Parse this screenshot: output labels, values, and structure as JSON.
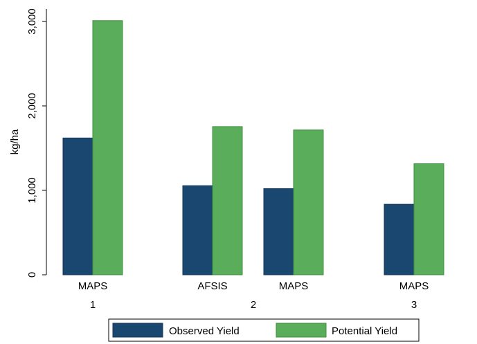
{
  "chart_data": {
    "type": "bar",
    "ylabel": "kg/ha",
    "ylim": [
      0,
      3000
    ],
    "yticks": [
      0,
      1000,
      2000,
      3000
    ],
    "ytick_labels": [
      "0",
      "1,000",
      "2,000",
      "3,000"
    ],
    "groups": [
      {
        "label": "1",
        "bars": [
          {
            "label": "MAPS",
            "observed": 1620,
            "potential": 3010
          }
        ]
      },
      {
        "label": "2",
        "bars": [
          {
            "label": "AFSIS",
            "observed": 1055,
            "potential": 1755
          },
          {
            "label": "MAPS",
            "observed": 1020,
            "potential": 1715
          }
        ]
      },
      {
        "label": "3",
        "bars": [
          {
            "label": "MAPS",
            "observed": 835,
            "potential": 1315
          }
        ]
      }
    ],
    "series": [
      {
        "name": "Observed Yield",
        "key": "observed",
        "color": "#1a476f"
      },
      {
        "name": "Potential Yield",
        "key": "potential",
        "color": "#5aad5a"
      }
    ],
    "grid": false,
    "legend_position": "bottom"
  }
}
